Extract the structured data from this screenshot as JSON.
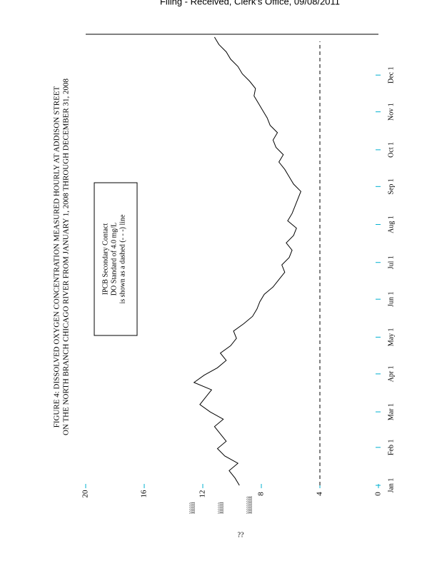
{
  "header": "Filing  - Received,   Clerk's  Office,  09/08/2011",
  "chart_data": {
    "type": "line",
    "title": "FIGURE 4: DISSOLVED OXYGEN CONCENTRATION MEASURED HOURLY AT ADDISON STREET",
    "subtitle": "ON THE NORTH BRANCH CHICAGO RIVER FROM JANUARY 1, 2008 THROUGH DECEMBER 31, 2008",
    "legend_lines": [
      "IPCB Secondary Contact",
      "DO Standard of 4.0 mg/L",
      "is shown as a dashed (- - -) line"
    ],
    "standard": 4,
    "x": [
      0,
      6,
      12,
      18,
      24,
      30,
      36,
      42,
      48,
      54,
      60,
      66,
      72,
      78,
      84,
      90,
      96,
      102,
      108,
      114,
      120,
      126,
      132,
      138,
      144,
      150,
      156,
      162,
      168,
      174,
      180,
      186,
      192,
      198,
      204,
      210,
      216,
      222,
      228,
      234,
      240,
      246,
      252,
      258,
      264,
      270,
      276,
      282,
      288,
      294,
      300,
      306,
      312,
      318,
      324,
      330,
      336,
      342,
      348,
      354,
      360,
      366
    ],
    "values": [
      9.5,
      9.8,
      10.2,
      9.6,
      10.5,
      11,
      10.4,
      10.8,
      11.2,
      10.6,
      11.5,
      12.2,
      11.8,
      11.4,
      12.6,
      11.9,
      11,
      10.4,
      10.8,
      10.1,
      9.7,
      9.9,
      9.2,
      8.6,
      8.3,
      8.1,
      7.8,
      7.2,
      6.8,
      6.4,
      6.6,
      6.1,
      5.9,
      6.3,
      5.8,
      5.6,
      6.2,
      5.9,
      5.7,
      5.5,
      5.3,
      5.8,
      6.1,
      6.4,
      6.8,
      6.5,
      7,
      7.2,
      6.9,
      7.4,
      7.6,
      7.9,
      8.2,
      8.5,
      8.4,
      8.8,
      9.3,
      9.6,
      10.1,
      10.4,
      10.9,
      11.2
    ],
    "color": "#000000",
    "xlim": [
      0,
      366
    ],
    "xticks": [
      {
        "value": 0,
        "label": "Jan 1"
      },
      {
        "value": 31,
        "label": "Feb 1"
      },
      {
        "value": 60,
        "label": "Mar 1"
      },
      {
        "value": 91,
        "label": "Apr 1"
      },
      {
        "value": 121,
        "label": "May 1"
      },
      {
        "value": 152,
        "label": "Jun 1"
      },
      {
        "value": 182,
        "label": "Jul 1"
      },
      {
        "value": 213,
        "label": "Aug 1"
      },
      {
        "value": 244,
        "label": "Sep 1"
      },
      {
        "value": 274,
        "label": "Oct 1"
      },
      {
        "value": 305,
        "label": "Nov 1"
      },
      {
        "value": 335,
        "label": "Dec 1"
      }
    ],
    "ylim": [
      0,
      20
    ],
    "yticks": [
      0,
      4,
      8,
      12,
      16,
      20
    ]
  },
  "footer": [
    "ìììììì",
    "ìììììì",
    "ììììììììì"
  ],
  "page_mark": "??"
}
